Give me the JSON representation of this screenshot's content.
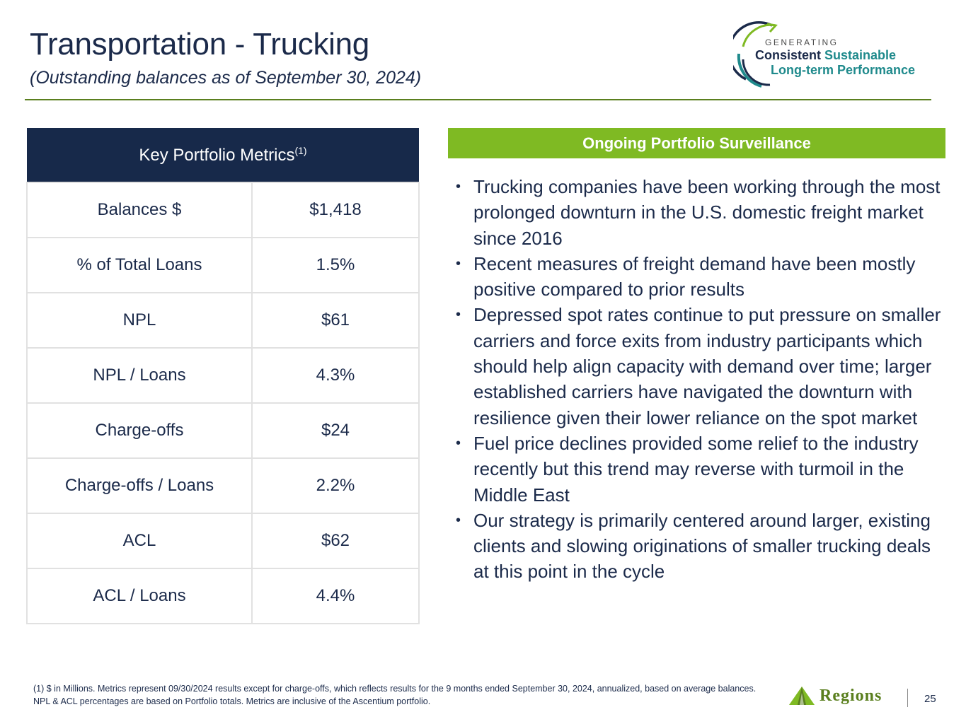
{
  "header": {
    "title": "Transportation - Trucking",
    "subtitle": "(Outstanding balances as of September 30, 2024)"
  },
  "logo": {
    "line1": "GENERATING",
    "line2a": "Consistent",
    "line2b": "Sustainable",
    "line3": "Long-term Performance",
    "colors": {
      "navy": "#1b2a4a",
      "teal": "#1f8a8c",
      "green": "#7fba23"
    }
  },
  "metrics": {
    "heading": "Key Portfolio Metrics",
    "heading_note": "(1)",
    "rows": [
      {
        "label": "Balances $",
        "value": "$1,418"
      },
      {
        "label": "% of Total Loans",
        "value": "1.5%"
      },
      {
        "label": "NPL",
        "value": "$61"
      },
      {
        "label": "NPL / Loans",
        "value": "4.3%"
      },
      {
        "label": "Charge-offs",
        "value": "$24"
      },
      {
        "label": "Charge-offs / Loans",
        "value": "2.2%"
      },
      {
        "label": "ACL",
        "value": "$62"
      },
      {
        "label": "ACL / Loans",
        "value": "4.4%"
      }
    ]
  },
  "surveillance": {
    "heading": "Ongoing Portfolio Surveillance",
    "bullet_glyph": "•",
    "bullets": [
      "Trucking companies have been working through the most prolonged downturn in the U.S. domestic freight market since 2016",
      "Recent measures of freight demand have been mostly positive compared to prior results",
      "Depressed spot rates continue to put pressure on smaller carriers and force exits from industry participants which should help align capacity with demand over time; larger established carriers have navigated the downturn with resilience given their lower reliance on the spot market",
      "Fuel price declines provided some relief to the industry recently but this trend may reverse with turmoil in the Middle East",
      "Our strategy is primarily centered around larger, existing clients and slowing originations of smaller trucking deals at this point in the cycle"
    ]
  },
  "footer": {
    "footnote": "(1) $ in Millions. Metrics represent 09/30/2024 results except for charge-offs, which reflects results for the 9 months ended September 30, 2024, annualized, based on average balances. NPL & ACL percentages are based on Portfolio totals. Metrics are inclusive of the Ascentium portfolio.",
    "brand": "Regions",
    "page_number": "25"
  },
  "colors": {
    "title_navy": "#1b2a4a",
    "table_header": "#17294a",
    "panel_green": "#7fba23",
    "rule_green": "#5a7f1e"
  }
}
